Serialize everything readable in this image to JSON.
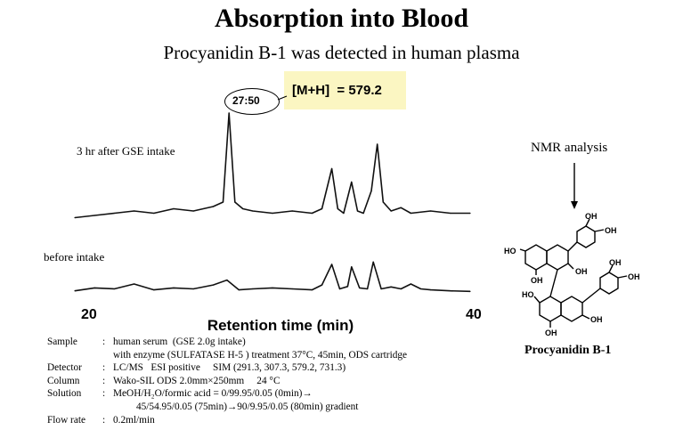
{
  "title": "Absorption into Blood",
  "subtitle": "Procyanidin B-1 was detected in human plasma",
  "annotation": {
    "mz_label": "[M+H]  = 579.2",
    "peak_time": "27:50"
  },
  "traces": {
    "after_label": "3 hr after GSE intake",
    "before_label": "before intake"
  },
  "axis": {
    "x_min_label": "20",
    "x_max_label": "40",
    "title": "Retention time (min)"
  },
  "nmr": {
    "label": "NMR analysis",
    "compound": "Procyanidin B-1",
    "groups": {
      "oh": "OH",
      "ho": "HO"
    }
  },
  "conditions": [
    {
      "key": "Sample",
      "value": "human serum  (GSE 2.0g intake)"
    },
    {
      "key": "",
      "value": "with enzyme (SULFATASE H-5 ) treatment 37°C, 45min, ODS cartridge"
    },
    {
      "key": "Detector",
      "value": "LC/MS   ESI positive     SIM (291.3, 307.3, 579.2, 731.3)"
    },
    {
      "key": "Column",
      "value": "Wako-SIL ODS 2.0mm×250mm     24 °C"
    },
    {
      "key": "Solution",
      "value": "MeOH/H₂O/formic acid = 0/99.95/0.05 (0min)→"
    },
    {
      "key": "",
      "value": "45/54.95/0.05 (75min)→90/9.95/0.05 (80min) gradient"
    },
    {
      "key": "Flow rate",
      "value": "0.2ml/min"
    }
  ],
  "chart_data": {
    "type": "line",
    "title": "Absorption into Blood",
    "xlabel": "Retention time (min)",
    "ylabel": "",
    "xlim": [
      20,
      40
    ],
    "grid": false,
    "series": [
      {
        "name": "3 hr after GSE intake",
        "x": [
          20,
          21,
          22,
          23,
          24,
          25,
          26,
          27,
          27.5,
          27.8,
          28.1,
          28.5,
          29,
          30,
          31,
          32,
          32.5,
          33,
          33.3,
          33.6,
          34,
          34.3,
          34.6,
          35,
          35.3,
          35.6,
          36,
          36.5,
          37,
          38,
          39,
          40
        ],
        "y": [
          0.06,
          0.08,
          0.1,
          0.12,
          0.1,
          0.14,
          0.12,
          0.16,
          0.2,
          1.0,
          0.2,
          0.14,
          0.12,
          0.1,
          0.12,
          0.1,
          0.14,
          0.5,
          0.14,
          0.1,
          0.38,
          0.12,
          0.1,
          0.3,
          0.72,
          0.2,
          0.12,
          0.15,
          0.1,
          0.12,
          0.1,
          0.1
        ]
      },
      {
        "name": "before intake",
        "x": [
          20,
          21,
          22,
          23,
          24,
          25,
          26,
          27,
          27.7,
          28.3,
          29,
          30,
          31,
          32,
          32.5,
          33,
          33.4,
          33.8,
          34,
          34.4,
          34.8,
          35.1,
          35.5,
          36,
          36.5,
          37,
          37.5,
          38,
          39,
          40
        ],
        "y": [
          0.06,
          0.12,
          0.1,
          0.2,
          0.08,
          0.12,
          0.1,
          0.18,
          0.28,
          0.08,
          0.1,
          0.12,
          0.1,
          0.08,
          0.18,
          0.6,
          0.1,
          0.15,
          0.55,
          0.12,
          0.1,
          0.65,
          0.1,
          0.14,
          0.1,
          0.2,
          0.1,
          0.08,
          0.06,
          0.05
        ]
      }
    ]
  }
}
